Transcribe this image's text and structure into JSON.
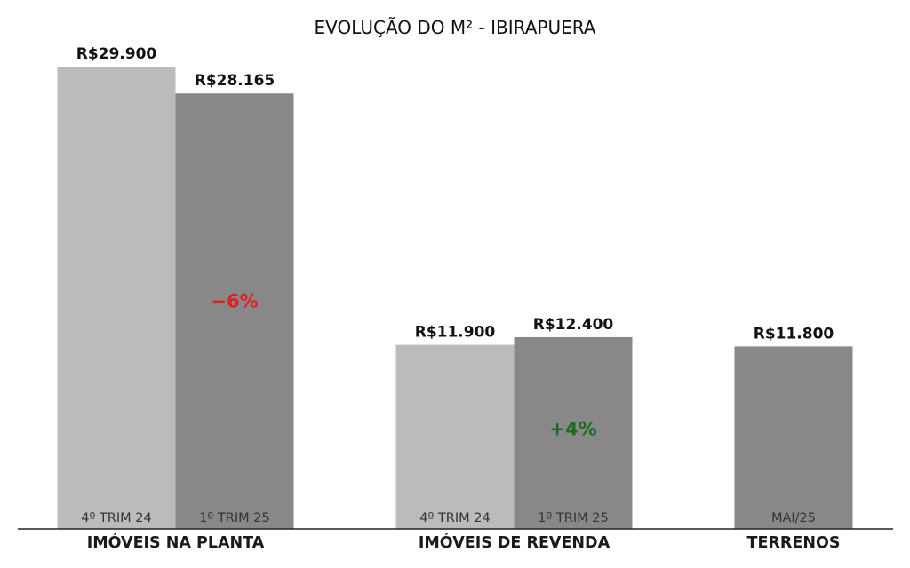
{
  "chart_data": {
    "type": "bar",
    "title": "EVOLUÇÃO DO M² - IBIRAPUERA",
    "ylim": [
      0,
      29900
    ],
    "grid": false,
    "categories": [
      "IMÓVEIS NA PLANTA",
      "IMÓVEIS DE REVENDA",
      "TERRENOS"
    ],
    "groups": [
      {
        "category": "IMÓVEIS NA PLANTA",
        "bars": [
          {
            "period": "4º TRIM 24",
            "value": 29900,
            "label": "R$29.900",
            "color": "#bbbbbb"
          },
          {
            "period": "1º TRIM 25",
            "value": 28165,
            "label": "R$28.165",
            "color": "#888888"
          }
        ],
        "change": {
          "text": "−6%",
          "color": "#e02020"
        }
      },
      {
        "category": "IMÓVEIS DE REVENDA",
        "bars": [
          {
            "period": "4º TRIM 24",
            "value": 11900,
            "label": "R$11.900",
            "color": "#bbbbbb"
          },
          {
            "period": "1º TRIM 25",
            "value": 12400,
            "label": "R$12.400",
            "color": "#888888"
          }
        ],
        "change": {
          "text": "+4%",
          "color": "#1e6b1e"
        }
      },
      {
        "category": "TERRENOS",
        "bars": [
          {
            "period": "MAI/25",
            "value": 11800,
            "label": "R$11.800",
            "color": "#888888"
          }
        ],
        "change": null
      }
    ]
  }
}
